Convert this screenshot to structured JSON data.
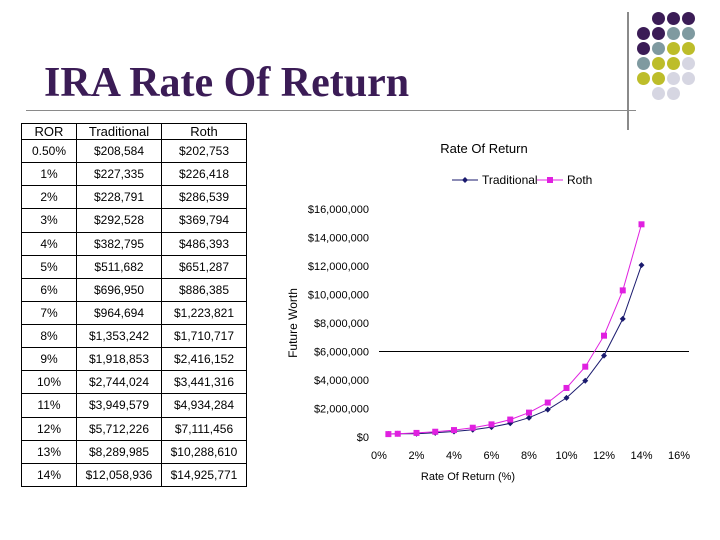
{
  "slide": {
    "title": "IRA Rate Of Return",
    "palette": [
      "#3b1c56",
      "#7f9aa0",
      "#bdbd2a",
      "#d6d6e2"
    ]
  },
  "table": {
    "headers": [
      "ROR",
      "Traditional",
      "Roth"
    ],
    "rows": [
      [
        "0.50%",
        "$208,584",
        "$202,753"
      ],
      [
        "1%",
        "$227,335",
        "$226,418"
      ],
      [
        "2%",
        "$228,791",
        "$286,539"
      ],
      [
        "3%",
        "$292,528",
        "$369,794"
      ],
      [
        "4%",
        "$382,795",
        "$486,393"
      ],
      [
        "5%",
        "$511,682",
        "$651,287"
      ],
      [
        "6%",
        "$696,950",
        "$886,385"
      ],
      [
        "7%",
        "$964,694",
        "$1,223,821"
      ],
      [
        "8%",
        "$1,353,242",
        "$1,710,717"
      ],
      [
        "9%",
        "$1,918,853",
        "$2,416,152"
      ],
      [
        "10%",
        "$2,744,024",
        "$3,441,316"
      ],
      [
        "11%",
        "$3,949,579",
        "$4,934,284"
      ],
      [
        "12%",
        "$5,712,226",
        "$7,111,456"
      ],
      [
        "13%",
        "$8,289,985",
        "$10,288,610"
      ],
      [
        "14%",
        "$12,058,936",
        "$14,925,771"
      ]
    ]
  },
  "chart_data": {
    "type": "line",
    "title": "Rate Of Return",
    "xlabel": "Rate Of Return (%)",
    "ylabel": "Future Worth",
    "xlim": [
      0,
      16
    ],
    "ylim": [
      0,
      16000000
    ],
    "x_ticks": [
      "0%",
      "2%",
      "4%",
      "6%",
      "8%",
      "10%",
      "12%",
      "14%",
      "16%"
    ],
    "y_ticks": [
      "$0",
      "$2,000,000",
      "$4,000,000",
      "$6,000,000",
      "$8,000,000",
      "$10,000,000",
      "$12,000,000",
      "$14,000,000",
      "$16,000,000"
    ],
    "x": [
      0.5,
      1,
      2,
      3,
      4,
      5,
      6,
      7,
      8,
      9,
      10,
      11,
      12,
      13,
      14
    ],
    "series": [
      {
        "name": "Traditional",
        "color": "#1a1a6e",
        "marker": "diamond",
        "values": [
          208584,
          227335,
          228791,
          292528,
          382795,
          511682,
          696950,
          964694,
          1353242,
          1918853,
          2744024,
          3949579,
          5712226,
          8289985,
          12058936
        ]
      },
      {
        "name": "Roth",
        "color": "#e020e0",
        "marker": "square",
        "values": [
          202753,
          226418,
          286539,
          369794,
          486393,
          651287,
          886385,
          1223821,
          1710717,
          2416152,
          3441316,
          4934284,
          7111456,
          10288610,
          14925771
        ]
      }
    ],
    "grid": false,
    "legend": "top"
  }
}
